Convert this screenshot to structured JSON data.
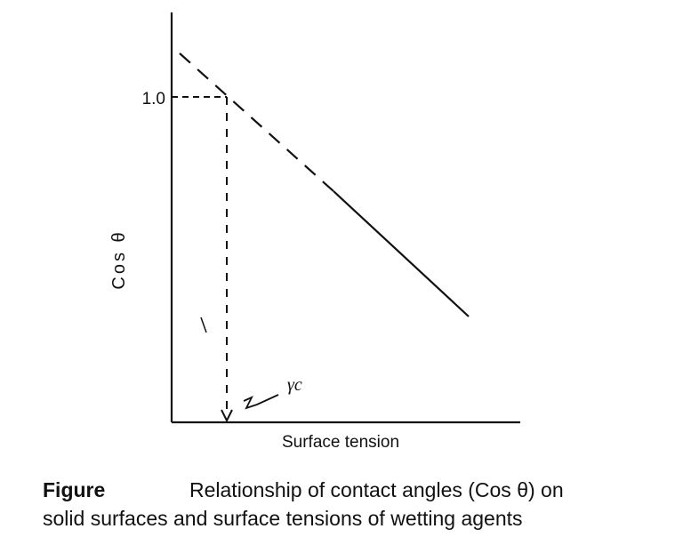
{
  "figure": {
    "y_axis_label": "Cos θ",
    "x_axis_label": "Surface tension",
    "y_tick_label": "1.0",
    "annotation": "γc"
  },
  "caption": {
    "label": "Figure",
    "text_line1": "Relationship of contact angles (Cos θ) on",
    "text_line2": "solid surfaces and surface tensions of wetting agents"
  },
  "colors": {
    "ink": "#111111",
    "background": "#ffffff"
  }
}
